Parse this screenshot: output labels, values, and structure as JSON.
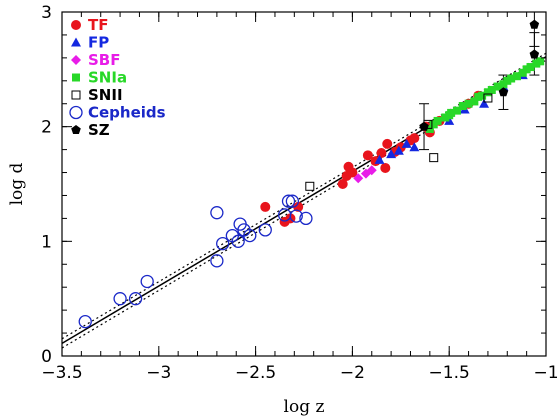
{
  "chart_data": {
    "type": "scatter",
    "xlabel": "log z",
    "ylabel": "log d",
    "xlim": [
      -3.5,
      -1.0
    ],
    "ylim": [
      0,
      3
    ],
    "x_ticks": [
      -3.5,
      -3,
      -2.5,
      -2,
      -1.5,
      -1
    ],
    "x_tick_labels": [
      "−3.5",
      "−3",
      "−2.5",
      "−2",
      "−1.5",
      "−1"
    ],
    "y_ticks": [
      0,
      1,
      2,
      3
    ],
    "y_tick_labels": [
      "0",
      "1",
      "2",
      "3"
    ],
    "legend_position": "top-left",
    "fit_line": {
      "x": [
        -3.5,
        -1.0
      ],
      "y": [
        0.11,
        2.61
      ]
    },
    "fit_band_upper": {
      "x": [
        -3.5,
        -1.0
      ],
      "y": [
        0.15,
        2.64
      ]
    },
    "fit_band_lower": {
      "x": [
        -3.5,
        -1.0
      ],
      "y": [
        0.07,
        2.58
      ]
    },
    "series": [
      {
        "name": "TF",
        "marker": "circle-filled",
        "color": "#e8141c",
        "points": [
          [
            -2.45,
            1.3
          ],
          [
            -2.35,
            1.17
          ],
          [
            -2.32,
            1.2
          ],
          [
            -2.28,
            1.3
          ],
          [
            -2.05,
            1.5
          ],
          [
            -2.03,
            1.57
          ],
          [
            -2.02,
            1.65
          ],
          [
            -2.0,
            1.6
          ],
          [
            -1.92,
            1.75
          ],
          [
            -1.88,
            1.7
          ],
          [
            -1.85,
            1.77
          ],
          [
            -1.83,
            1.64
          ],
          [
            -1.82,
            1.85
          ],
          [
            -1.78,
            1.78
          ],
          [
            -1.75,
            1.82
          ],
          [
            -1.7,
            1.88
          ],
          [
            -1.68,
            1.9
          ],
          [
            -1.62,
            2.0
          ],
          [
            -1.6,
            1.95
          ],
          [
            -1.55,
            2.05
          ],
          [
            -1.4,
            2.2
          ],
          [
            -1.35,
            2.27
          ]
        ]
      },
      {
        "name": "FP",
        "marker": "triangle-filled",
        "color": "#1428e0",
        "points": [
          [
            -1.86,
            1.71
          ],
          [
            -1.8,
            1.76
          ],
          [
            -1.76,
            1.79
          ],
          [
            -1.72,
            1.85
          ],
          [
            -1.68,
            1.82
          ],
          [
            -1.5,
            2.05
          ],
          [
            -1.42,
            2.15
          ],
          [
            -1.32,
            2.2
          ],
          [
            -1.22,
            2.35
          ],
          [
            -1.12,
            2.45
          ]
        ]
      },
      {
        "name": "SBF",
        "marker": "diamond-filled",
        "color": "#e81ce8",
        "points": [
          [
            -1.97,
            1.55
          ],
          [
            -1.93,
            1.59
          ],
          [
            -1.9,
            1.62
          ]
        ]
      },
      {
        "name": "SNIa",
        "marker": "square-filled",
        "color": "#28d828",
        "points": [
          [
            -1.56,
            2.05
          ],
          [
            -1.52,
            2.08
          ],
          [
            -1.49,
            2.12
          ],
          [
            -1.46,
            2.14
          ],
          [
            -1.43,
            2.18
          ],
          [
            -1.4,
            2.2
          ],
          [
            -1.37,
            2.22
          ],
          [
            -1.35,
            2.26
          ],
          [
            -1.33,
            2.27
          ],
          [
            -1.3,
            2.3
          ],
          [
            -1.28,
            2.32
          ],
          [
            -1.25,
            2.35
          ],
          [
            -1.22,
            2.37
          ],
          [
            -1.2,
            2.4
          ],
          [
            -1.18,
            2.42
          ],
          [
            -1.15,
            2.44
          ],
          [
            -1.12,
            2.47
          ],
          [
            -1.1,
            2.5
          ],
          [
            -1.08,
            2.52
          ],
          [
            -1.05,
            2.55
          ],
          [
            -1.03,
            2.57
          ],
          [
            -1.6,
            1.98
          ],
          [
            -1.58,
            2.02
          ],
          [
            -1.5,
            2.1
          ]
        ]
      },
      {
        "name": "SNII",
        "marker": "square-open",
        "color": "#000000",
        "points": [
          [
            -2.22,
            1.48
          ],
          [
            -1.61,
            2.02
          ],
          [
            -1.58,
            1.73
          ],
          [
            -1.3,
            2.25
          ]
        ]
      },
      {
        "name": "Cepheids",
        "marker": "circle-open",
        "color": "#1a28c8",
        "points": [
          [
            -3.38,
            0.3
          ],
          [
            -3.2,
            0.5
          ],
          [
            -3.12,
            0.5
          ],
          [
            -3.06,
            0.65
          ],
          [
            -2.7,
            0.83
          ],
          [
            -2.7,
            1.25
          ],
          [
            -2.67,
            0.98
          ],
          [
            -2.62,
            1.05
          ],
          [
            -2.59,
            1.0
          ],
          [
            -2.58,
            1.15
          ],
          [
            -2.56,
            1.1
          ],
          [
            -2.53,
            1.05
          ],
          [
            -2.45,
            1.1
          ],
          [
            -2.35,
            1.23
          ],
          [
            -2.33,
            1.35
          ],
          [
            -2.31,
            1.35
          ],
          [
            -2.29,
            1.22
          ],
          [
            -2.24,
            1.2
          ]
        ]
      },
      {
        "name": "SZ",
        "marker": "pentagon-filled",
        "color": "#000000",
        "points": [
          [
            -1.63,
            2.0
          ],
          [
            -1.22,
            2.3
          ],
          [
            -1.06,
            2.63
          ],
          [
            -1.06,
            2.89
          ]
        ],
        "error_bars": [
          [
            -1.63,
            1.8,
            2.2
          ],
          [
            -1.22,
            2.15,
            2.45
          ],
          [
            -1.06,
            2.45,
            2.82
          ],
          [
            -1.06,
            2.7,
            3.0
          ]
        ]
      }
    ]
  }
}
